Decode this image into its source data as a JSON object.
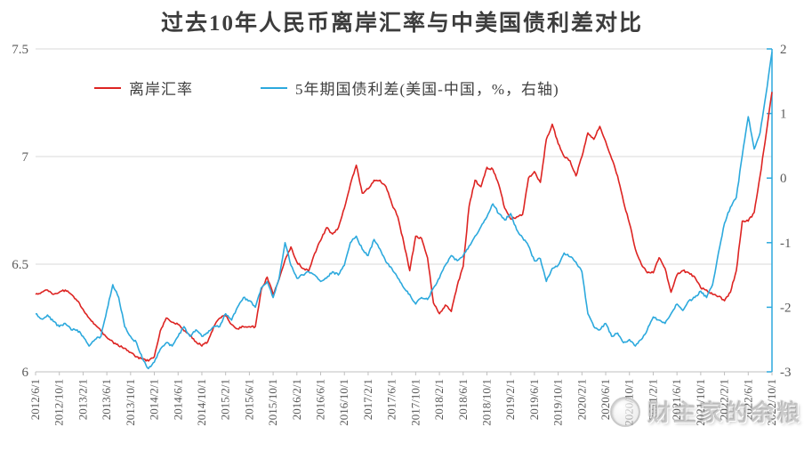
{
  "title": "过去10年人民币离岸汇率与中美国债利差对比",
  "legend": {
    "items": [
      {
        "label": "离岸汇率",
        "color": "#dd2422"
      },
      {
        "label": "5年期国债利差(美国-中国，%，右轴)",
        "color": "#2ca9dd"
      }
    ]
  },
  "watermark": {
    "logo": "panda-badge-icon",
    "text": "财主家的余粮"
  },
  "colors": {
    "offshore_rate_line": "#dd2422",
    "yield_spread_line": "#2ca9dd",
    "gridline": "#d9d9d9",
    "axis_line": "#bfbfbf",
    "axis_text": "#595959",
    "right_axis_line": "#2ca9dd"
  },
  "chart_data": {
    "type": "line",
    "title": "过去10年人民币离岸汇率与中美国债利差对比",
    "x_start": "2012/6/1",
    "x_end": "2022/10/1",
    "x_step_months": 1,
    "x_tick_labels": [
      "2012/6/1",
      "2012/10/1",
      "2013/2/1",
      "2013/6/1",
      "2013/10/1",
      "2014/2/1",
      "2014/6/1",
      "2014/10/1",
      "2015/2/1",
      "2015/6/1",
      "2015/10/1",
      "2016/2/1",
      "2016/6/1",
      "2016/10/1",
      "2017/2/1",
      "2017/6/1",
      "2017/10/1",
      "2018/2/1",
      "2018/6/1",
      "2018/10/1",
      "2019/2/1",
      "2019/6/1",
      "2019/10/1",
      "2020/2/1",
      "2020/6/1",
      "2020/10/1",
      "2021/2/1",
      "2021/6/1",
      "2021/10/1",
      "2022/2/1",
      "2022/6/1",
      "2022/10/1"
    ],
    "grid": "horizontal",
    "legend_position": "top-left",
    "left_axis": {
      "min": 6,
      "max": 7.5,
      "tick_labels": [
        "7.5",
        "7",
        "6.5",
        "6"
      ],
      "tick_values": [
        7.5,
        7,
        6.5,
        6
      ]
    },
    "right_axis": {
      "min": -3,
      "max": 2,
      "tick_labels": [
        "2",
        "1",
        "0",
        "-1",
        "-2",
        "-3"
      ],
      "tick_values": [
        2,
        1,
        0,
        -1,
        -2,
        -3
      ]
    },
    "series": [
      {
        "name": "离岸汇率",
        "axis": "left",
        "color": "#dd2422",
        "values": [
          6.36,
          6.37,
          6.38,
          6.36,
          6.37,
          6.38,
          6.36,
          6.33,
          6.29,
          6.25,
          6.22,
          6.19,
          6.16,
          6.14,
          6.12,
          6.11,
          6.09,
          6.07,
          6.06,
          6.05,
          6.07,
          6.19,
          6.25,
          6.23,
          6.22,
          6.19,
          6.17,
          6.14,
          6.12,
          6.14,
          6.21,
          6.25,
          6.26,
          6.22,
          6.2,
          6.21,
          6.21,
          6.21,
          6.38,
          6.44,
          6.36,
          6.43,
          6.52,
          6.58,
          6.51,
          6.48,
          6.47,
          6.55,
          6.61,
          6.67,
          6.64,
          6.67,
          6.76,
          6.87,
          6.96,
          6.83,
          6.85,
          6.89,
          6.89,
          6.86,
          6.78,
          6.72,
          6.6,
          6.47,
          6.63,
          6.62,
          6.53,
          6.32,
          6.27,
          6.31,
          6.28,
          6.4,
          6.49,
          6.77,
          6.89,
          6.86,
          6.95,
          6.94,
          6.87,
          6.76,
          6.71,
          6.72,
          6.73,
          6.9,
          6.93,
          6.88,
          7.08,
          7.15,
          7.06,
          7.0,
          6.98,
          6.91,
          7.0,
          7.11,
          7.08,
          7.14,
          7.07,
          6.99,
          6.91,
          6.79,
          6.69,
          6.57,
          6.5,
          6.46,
          6.46,
          6.53,
          6.48,
          6.37,
          6.45,
          6.47,
          6.46,
          6.44,
          6.39,
          6.38,
          6.36,
          6.35,
          6.33,
          6.37,
          6.47,
          6.7,
          6.7,
          6.74,
          6.91,
          7.1,
          7.3
        ]
      },
      {
        "name": "5年期国债利差(美国-中国，%，右轴)",
        "axis": "right",
        "color": "#2ca9dd",
        "values": [
          -2.1,
          -2.18,
          -2.12,
          -2.22,
          -2.3,
          -2.25,
          -2.35,
          -2.35,
          -2.45,
          -2.6,
          -2.5,
          -2.45,
          -2.05,
          -1.65,
          -1.85,
          -2.3,
          -2.45,
          -2.55,
          -2.8,
          -2.95,
          -2.85,
          -2.65,
          -2.55,
          -2.6,
          -2.45,
          -2.3,
          -2.45,
          -2.35,
          -2.45,
          -2.4,
          -2.3,
          -2.3,
          -2.1,
          -2.2,
          -2.0,
          -1.85,
          -1.9,
          -2.0,
          -1.7,
          -1.6,
          -1.85,
          -1.55,
          -1.0,
          -1.35,
          -1.55,
          -1.5,
          -1.45,
          -1.5,
          -1.6,
          -1.55,
          -1.45,
          -1.5,
          -1.35,
          -1.0,
          -0.9,
          -1.1,
          -1.2,
          -0.95,
          -1.1,
          -1.3,
          -1.4,
          -1.55,
          -1.7,
          -1.8,
          -1.95,
          -1.85,
          -1.88,
          -1.7,
          -1.55,
          -1.35,
          -1.2,
          -1.28,
          -1.2,
          -1.05,
          -0.9,
          -0.75,
          -0.6,
          -0.4,
          -0.55,
          -0.65,
          -0.55,
          -0.8,
          -0.92,
          -1.05,
          -1.28,
          -1.25,
          -1.6,
          -1.4,
          -1.35,
          -1.16,
          -1.22,
          -1.3,
          -1.45,
          -2.1,
          -2.3,
          -2.35,
          -2.25,
          -2.45,
          -2.4,
          -2.55,
          -2.5,
          -2.6,
          -2.5,
          -2.35,
          -2.15,
          -2.2,
          -2.25,
          -2.1,
          -1.95,
          -2.05,
          -1.9,
          -1.85,
          -1.75,
          -1.85,
          -1.65,
          -1.15,
          -0.7,
          -0.45,
          -0.3,
          0.35,
          0.95,
          0.45,
          0.7,
          1.3,
          1.95
        ]
      }
    ]
  }
}
